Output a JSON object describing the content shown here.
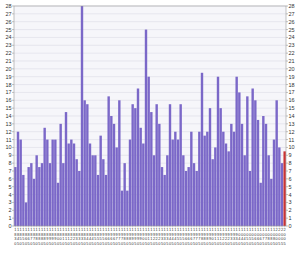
{
  "chart_data": {
    "type": "bar",
    "categories": [
      "1\n8\n3\n0",
      "1\n8\n4\n5",
      "1\n8\n5\n0",
      "1\n8\n5\n5",
      "1\n8\n6\n0",
      "1\n8\n6\n5",
      "1\n8\n7\n0",
      "1\n8\n7\n5",
      "1\n8\n8\n0",
      "1\n8\n8\n5",
      "1\n8\n8\n0",
      "1\n8\n8\n5",
      "1\n8\n9\n0",
      "1\n8\n9\n5",
      "1\n8\n9\n0",
      "1\n8\n9\n5",
      "1\n8\n0\n0",
      "1\n8\n0\n5",
      "1\n8\n1\n0",
      "1\n8\n1\n5",
      "1\n8\n1\n0",
      "1\n8\n2\n5",
      "1\n8\n2\n0",
      "1\n8\n3\n5",
      "1\n8\n3\n0",
      "1\n8\n3\n5",
      "1\n8\n3\n0",
      "1\n8\n4\n5",
      "1\n8\n4\n0",
      "1\n8\n4\n5",
      "1\n8\n5\n0",
      "1\n8\n5\n5",
      "1\n9\n5\n0",
      "1\n9\n5\n5",
      "1\n9\n6\n0",
      "1\n9\n6\n5",
      "1\n9\n6\n0",
      "1\n9\n6\n5",
      "1\n9\n7\n0",
      "1\n9\n7\n5",
      "1\n9\n7\n0",
      "1\n9\n8\n5",
      "1\n9\n8\n0",
      "1\n9\n8\n5",
      "1\n9\n9\n0",
      "1\n9\n9\n5",
      "1\n9\n9\n0",
      "1\n9\n9\n5",
      "1\n9\n0\n0",
      "1\n9\n0\n5",
      "1\n9\n1\n0",
      "1\n9\n1\n5",
      "1\n9\n2\n0",
      "1\n9\n2\n5",
      "1\n9\n2\n0",
      "1\n9\n3\n5",
      "1\n9\n3\n0",
      "1\n9\n3\n5",
      "1\n9\n4\n0",
      "1\n9\n4\n5",
      "1\n9\n4\n0",
      "1\n9\n5\n5",
      "1\n9\n5\n0",
      "1\n9\n5\n5",
      "1\n9\n6\n0",
      "1\n9\n6\n5",
      "1\n9\n6\n0",
      "1\n9\n7\n5",
      "1\n9\n7\n0",
      "1\n9\n7\n5",
      "1\n9\n8\n0",
      "1\n9\n8\n5",
      "1\n9\n8\n0",
      "1\n9\n9\n5",
      "1\n9\n0\n0",
      "1\n9\n1\n5",
      "1\n9\n1\n0",
      "1\n9\n1\n5",
      "1\n9\n2\n0",
      "1\n9\n2\n5",
      "1\n9\n2\n0",
      "1\n9\n3\n5",
      "1\n9\n3\n0",
      "1\n9\n3\n5",
      "1\n0\n4\n0",
      "1\n0\n4\n5",
      "1\n0\n4\n0",
      "1\n0\n5\n5",
      "1\n0\n5\n0",
      "1\n0\n5\n5",
      "1\n0\n6\n0",
      "1\n0\n6\n5",
      "1\n0\n6\n0",
      "1\n0\n7\n5",
      "1\n0\n7\n0",
      "1\n0\n8\n5",
      "1\n0\n8\n0",
      "1\n0\n8\n5",
      "2\n0\n0\n0",
      "2\n0\n0\n5",
      "2\n0\n0\n5",
      "2\n0\n0\n5"
    ],
    "values": [
      7.5,
      12,
      11,
      6.5,
      3,
      7.5,
      8,
      6,
      9,
      7.5,
      8,
      12.5,
      11,
      8,
      11,
      11,
      5.5,
      13,
      8,
      14.5,
      10.5,
      11,
      10.5,
      8.5,
      7,
      28,
      16,
      15.5,
      10.5,
      9,
      9,
      6.5,
      11.5,
      8.5,
      6.5,
      16.5,
      14,
      13,
      10,
      16,
      4.5,
      8,
      4.5,
      11,
      15.5,
      15,
      17.5,
      12.5,
      10.5,
      25,
      19,
      14.5,
      9,
      15.5,
      13,
      7.5,
      6.5,
      9,
      15.5,
      11,
      12,
      11,
      15.5,
      9,
      7,
      7.5,
      12,
      8,
      7,
      12,
      19.5,
      11.5,
      12,
      15,
      8.5,
      10,
      19,
      15,
      12,
      10.5,
      9.5,
      13,
      12,
      19,
      17,
      13,
      9,
      16.5,
      7,
      17.5,
      16,
      13.5,
      5.5,
      14,
      13,
      9,
      6,
      11,
      16,
      10,
      8,
      9.5
    ],
    "colors": [
      "#7b68c8",
      "#7b68c8",
      "#7b68c8",
      "#7b68c8",
      "#7b68c8",
      "#7b68c8",
      "#7b68c8",
      "#7b68c8",
      "#7b68c8",
      "#7b68c8",
      "#7b68c8",
      "#7b68c8",
      "#7b68c8",
      "#7b68c8",
      "#7b68c8",
      "#7b68c8",
      "#7b68c8",
      "#7b68c8",
      "#7b68c8",
      "#7b68c8",
      "#7b68c8",
      "#7b68c8",
      "#7b68c8",
      "#7b68c8",
      "#7b68c8",
      "#7b68c8",
      "#7b68c8",
      "#7b68c8",
      "#7b68c8",
      "#7b68c8",
      "#7b68c8",
      "#7b68c8",
      "#7b68c8",
      "#7b68c8",
      "#7b68c8",
      "#7b68c8",
      "#7b68c8",
      "#7b68c8",
      "#7b68c8",
      "#7b68c8",
      "#7b68c8",
      "#7b68c8",
      "#7b68c8",
      "#7b68c8",
      "#7b68c8",
      "#7b68c8",
      "#7b68c8",
      "#7b68c8",
      "#7b68c8",
      "#7b68c8",
      "#7b68c8",
      "#7b68c8",
      "#7b68c8",
      "#7b68c8",
      "#7b68c8",
      "#7b68c8",
      "#7b68c8",
      "#7b68c8",
      "#7b68c8",
      "#7b68c8",
      "#7b68c8",
      "#7b68c8",
      "#7b68c8",
      "#7b68c8",
      "#7b68c8",
      "#7b68c8",
      "#7b68c8",
      "#7b68c8",
      "#7b68c8",
      "#7b68c8",
      "#7b68c8",
      "#7b68c8",
      "#7b68c8",
      "#7b68c8",
      "#7b68c8",
      "#7b68c8",
      "#7b68c8",
      "#7b68c8",
      "#7b68c8",
      "#7b68c8",
      "#7b68c8",
      "#7b68c8",
      "#7b68c8",
      "#7b68c8",
      "#7b68c8",
      "#7b68c8",
      "#7b68c8",
      "#7b68c8",
      "#7b68c8",
      "#7b68c8",
      "#7b68c8",
      "#7b68c8",
      "#7b68c8",
      "#7b68c8",
      "#7b68c8",
      "#7b68c8",
      "#7b68c8",
      "#7b68c8",
      "#7b68c8",
      "#7b68c8",
      "#7b68c8",
      "#cc3333"
    ],
    "ylim": [
      0,
      28
    ],
    "yticks": [
      0,
      1,
      2,
      3,
      4,
      5,
      6,
      7,
      8,
      9,
      10,
      11,
      12,
      13,
      14,
      15,
      16,
      17,
      18,
      19,
      20,
      21,
      22,
      23,
      24,
      25,
      26,
      27,
      28
    ],
    "y2lim": [
      0,
      28
    ],
    "y2ticks": [
      0,
      1,
      2,
      3,
      4,
      5,
      6,
      7,
      8,
      9,
      10,
      11,
      12,
      13,
      14,
      15,
      16,
      17,
      18,
      19,
      20,
      21,
      22,
      23,
      24,
      25,
      26,
      27,
      28
    ],
    "grid": true
  }
}
